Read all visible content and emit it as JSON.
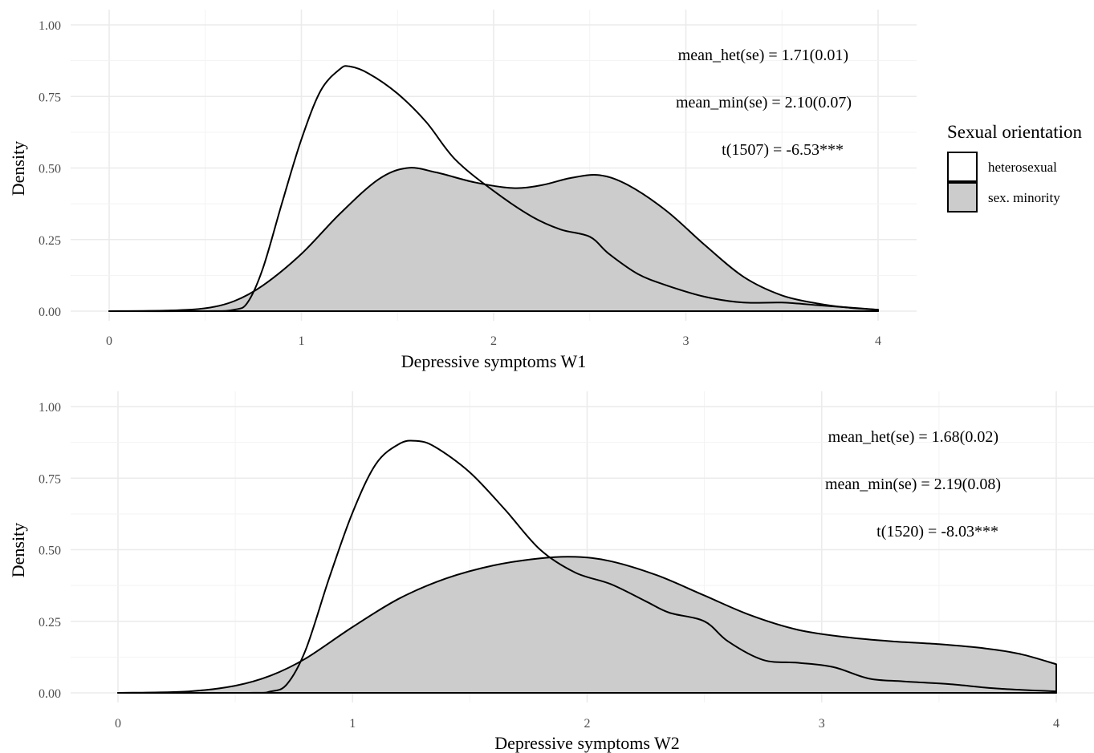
{
  "chart_data": [
    {
      "type": "area",
      "xlabel": "Depressive symptoms W1",
      "ylabel": "Density",
      "xlim": [
        0,
        4
      ],
      "ylim": [
        0,
        1
      ],
      "x_ticks": [
        0,
        1,
        2,
        3,
        4
      ],
      "x_tick_labels": [
        "0",
        "1",
        "2",
        "3",
        "4"
      ],
      "y_ticks": [
        0,
        0.25,
        0.5,
        0.75,
        1
      ],
      "y_tick_labels": [
        "0.00",
        "0.25",
        "0.50",
        "0.75",
        "1.00"
      ],
      "grid": true,
      "annotations": [
        "mean_het(se) =  1.71(0.01)",
        "mean_min(se) =  2.10(0.07)",
        "t(1507) = -6.53***"
      ],
      "series": [
        {
          "name": "heterosexual",
          "fill": "#ffffff",
          "x": [
            0,
            0.5,
            0.65,
            0.72,
            0.8,
            0.9,
            1.0,
            1.1,
            1.2,
            1.25,
            1.35,
            1.5,
            1.65,
            1.8,
            2.0,
            2.2,
            2.35,
            2.5,
            2.6,
            2.75,
            2.9,
            3.1,
            3.3,
            3.5,
            3.7,
            3.9,
            4.0
          ],
          "y": [
            0,
            0,
            0.005,
            0.03,
            0.15,
            0.38,
            0.6,
            0.77,
            0.845,
            0.855,
            0.83,
            0.76,
            0.66,
            0.53,
            0.42,
            0.33,
            0.285,
            0.26,
            0.2,
            0.13,
            0.09,
            0.05,
            0.03,
            0.03,
            0.02,
            0.01,
            0.005
          ]
        },
        {
          "name": "sex. minority",
          "fill": "#cccccc",
          "x": [
            0,
            0.3,
            0.5,
            0.65,
            0.8,
            1.0,
            1.2,
            1.4,
            1.55,
            1.7,
            1.9,
            2.1,
            2.25,
            2.4,
            2.55,
            2.7,
            2.9,
            3.1,
            3.3,
            3.5,
            3.7,
            3.85,
            4.0
          ],
          "y": [
            0,
            0.002,
            0.01,
            0.035,
            0.09,
            0.2,
            0.34,
            0.46,
            0.5,
            0.485,
            0.45,
            0.43,
            0.44,
            0.465,
            0.475,
            0.44,
            0.35,
            0.23,
            0.12,
            0.055,
            0.025,
            0.012,
            0.005
          ]
        }
      ]
    },
    {
      "type": "area",
      "xlabel": "Depressive symptoms W2",
      "ylabel": "Density",
      "xlim": [
        0,
        4
      ],
      "ylim": [
        0,
        1
      ],
      "x_ticks": [
        0,
        1,
        2,
        3,
        4
      ],
      "x_tick_labels": [
        "0",
        "1",
        "2",
        "3",
        "4"
      ],
      "y_ticks": [
        0,
        0.25,
        0.5,
        0.75,
        1
      ],
      "y_tick_labels": [
        "0.00",
        "0.25",
        "0.50",
        "0.75",
        "1.00"
      ],
      "grid": true,
      "annotations": [
        "mean_het(se) =  1.68(0.02)",
        "mean_min(se) =  2.19(0.08)",
        "t(1520) = -8.03***"
      ],
      "series": [
        {
          "name": "heterosexual",
          "fill": "#ffffff",
          "x": [
            0,
            0.55,
            0.65,
            0.72,
            0.8,
            0.9,
            1.0,
            1.1,
            1.2,
            1.27,
            1.35,
            1.5,
            1.65,
            1.8,
            1.95,
            2.1,
            2.25,
            2.35,
            2.5,
            2.6,
            2.75,
            2.9,
            3.05,
            3.2,
            3.35,
            3.55,
            3.75,
            4.0
          ],
          "y": [
            0,
            0,
            0.005,
            0.03,
            0.15,
            0.4,
            0.63,
            0.8,
            0.87,
            0.88,
            0.86,
            0.77,
            0.64,
            0.5,
            0.42,
            0.38,
            0.32,
            0.28,
            0.25,
            0.18,
            0.115,
            0.105,
            0.09,
            0.05,
            0.04,
            0.03,
            0.015,
            0.005
          ]
        },
        {
          "name": "sex. minority",
          "fill": "#cccccc",
          "x": [
            0,
            0.3,
            0.5,
            0.65,
            0.8,
            1.0,
            1.2,
            1.4,
            1.6,
            1.8,
            1.95,
            2.1,
            2.3,
            2.5,
            2.7,
            2.9,
            3.1,
            3.3,
            3.5,
            3.7,
            3.85,
            4.0
          ],
          "y": [
            0,
            0.005,
            0.025,
            0.06,
            0.12,
            0.23,
            0.33,
            0.4,
            0.445,
            0.47,
            0.475,
            0.46,
            0.41,
            0.34,
            0.27,
            0.22,
            0.195,
            0.18,
            0.17,
            0.155,
            0.135,
            0.1
          ]
        }
      ]
    }
  ],
  "legend": {
    "title": "Sexual orientation",
    "items": [
      {
        "label": "heterosexual",
        "fill": "#ffffff"
      },
      {
        "label": "sex. minority",
        "fill": "#cccccc"
      }
    ]
  }
}
